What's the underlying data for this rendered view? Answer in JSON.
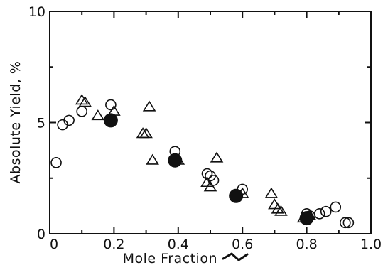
{
  "chart_data": {
    "type": "scatter",
    "title": "",
    "xlabel": "Mole Fraction",
    "ylabel": "Absolute Yield, %",
    "xlim": [
      0,
      1.0
    ],
    "ylim": [
      0,
      10
    ],
    "x_ticks": [
      "0",
      "0.2",
      "0.4",
      "0.6",
      "0.8",
      "1.0"
    ],
    "y_ticks": [
      "0",
      "5",
      "10"
    ],
    "grid": false,
    "legend": "none",
    "series": [
      {
        "marker": "open-circle",
        "points": [
          {
            "x": 0.02,
            "y": 3.2
          },
          {
            "x": 0.04,
            "y": 4.9
          },
          {
            "x": 0.06,
            "y": 5.1
          },
          {
            "x": 0.1,
            "y": 5.5
          },
          {
            "x": 0.19,
            "y": 5.8
          },
          {
            "x": 0.39,
            "y": 3.7
          },
          {
            "x": 0.49,
            "y": 2.7
          },
          {
            "x": 0.5,
            "y": 2.6
          },
          {
            "x": 0.51,
            "y": 2.4
          },
          {
            "x": 0.6,
            "y": 2.0
          },
          {
            "x": 0.8,
            "y": 0.9
          },
          {
            "x": 0.81,
            "y": 0.8
          },
          {
            "x": 0.84,
            "y": 0.9
          },
          {
            "x": 0.86,
            "y": 1.0
          },
          {
            "x": 0.89,
            "y": 1.2
          },
          {
            "x": 0.92,
            "y": 0.5
          },
          {
            "x": 0.93,
            "y": 0.5
          }
        ]
      },
      {
        "marker": "open-triangle",
        "points": [
          {
            "x": 0.1,
            "y": 6.0
          },
          {
            "x": 0.11,
            "y": 5.9
          },
          {
            "x": 0.15,
            "y": 5.3
          },
          {
            "x": 0.2,
            "y": 5.5
          },
          {
            "x": 0.29,
            "y": 4.5
          },
          {
            "x": 0.3,
            "y": 4.5
          },
          {
            "x": 0.31,
            "y": 5.7
          },
          {
            "x": 0.32,
            "y": 3.3
          },
          {
            "x": 0.4,
            "y": 3.3
          },
          {
            "x": 0.49,
            "y": 2.3
          },
          {
            "x": 0.5,
            "y": 2.1
          },
          {
            "x": 0.52,
            "y": 3.4
          },
          {
            "x": 0.6,
            "y": 1.8
          },
          {
            "x": 0.69,
            "y": 1.8
          },
          {
            "x": 0.7,
            "y": 1.3
          },
          {
            "x": 0.71,
            "y": 1.1
          },
          {
            "x": 0.72,
            "y": 1.0
          },
          {
            "x": 0.79,
            "y": 0.7
          },
          {
            "x": 0.81,
            "y": 0.8
          }
        ]
      },
      {
        "marker": "filled-circle",
        "points": [
          {
            "x": 0.19,
            "y": 5.1
          },
          {
            "x": 0.39,
            "y": 3.3
          },
          {
            "x": 0.58,
            "y": 1.7
          },
          {
            "x": 0.8,
            "y": 0.7
          }
        ]
      }
    ]
  }
}
